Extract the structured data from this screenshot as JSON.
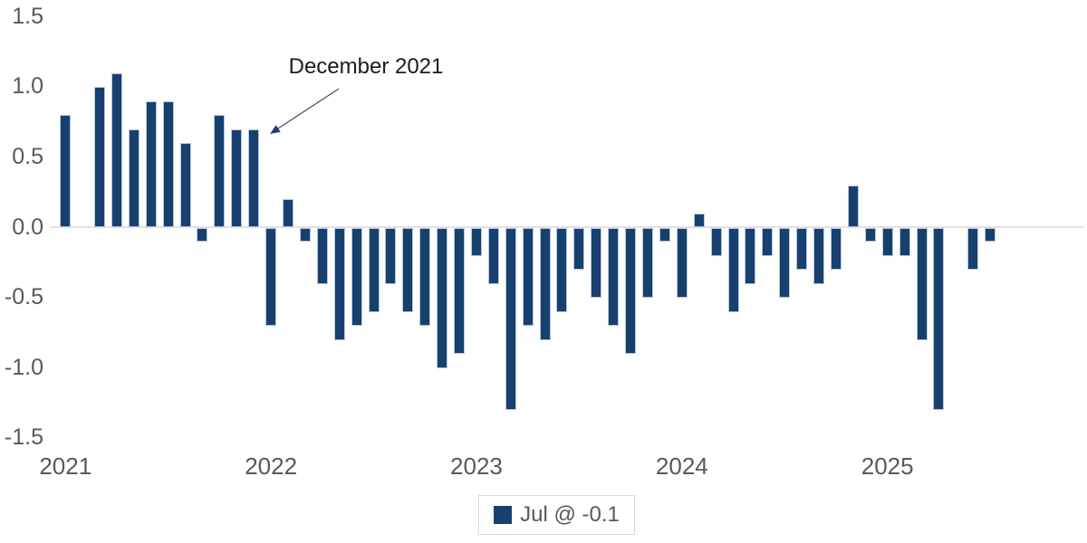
{
  "chart_data": {
    "type": "bar",
    "title": "",
    "xlabel": "",
    "ylabel": "",
    "ylim": [
      -1.5,
      1.5
    ],
    "grid": "zero-line-only",
    "legend_position": "bottom-center",
    "categories": [
      "2021-01",
      "2021-02",
      "2021-03",
      "2021-04",
      "2021-05",
      "2021-06",
      "2021-07",
      "2021-08",
      "2021-09",
      "2021-10",
      "2021-11",
      "2021-12",
      "2022-01",
      "2022-02",
      "2022-03",
      "2022-04",
      "2022-05",
      "2022-06",
      "2022-07",
      "2022-08",
      "2022-09",
      "2022-10",
      "2022-11",
      "2022-12",
      "2023-01",
      "2023-02",
      "2023-03",
      "2023-04",
      "2023-05",
      "2023-06",
      "2023-07",
      "2023-08",
      "2023-09",
      "2023-10",
      "2023-11",
      "2023-12",
      "2024-01",
      "2024-02",
      "2024-03",
      "2024-04",
      "2024-05",
      "2024-06",
      "2024-07",
      "2024-08",
      "2024-09",
      "2024-10",
      "2024-11",
      "2024-12",
      "2025-01",
      "2025-02",
      "2025-03",
      "2025-04",
      "2025-05",
      "2025-06",
      "2025-07"
    ],
    "values": [
      0.8,
      0.0,
      1.0,
      1.1,
      0.7,
      0.9,
      0.9,
      0.6,
      -0.1,
      0.8,
      0.7,
      0.7,
      -0.7,
      0.2,
      -0.1,
      -0.4,
      -0.8,
      -0.7,
      -0.6,
      -0.4,
      -0.6,
      -0.7,
      -1.0,
      -0.9,
      -0.2,
      -0.4,
      -1.3,
      -0.7,
      -0.8,
      -0.6,
      -0.3,
      -0.5,
      -0.7,
      -0.9,
      -0.5,
      -0.1,
      -0.5,
      0.1,
      -0.2,
      -0.6,
      -0.4,
      -0.2,
      -0.5,
      -0.3,
      -0.4,
      -0.3,
      0.3,
      -0.1,
      -0.2,
      -0.2,
      -0.8,
      -1.3,
      0.0,
      -0.3,
      -0.1
    ],
    "y_tick_labels": [
      "1.5",
      "1.0",
      "0.5",
      "0.0",
      "-0.5",
      "-1.0",
      "-1.5"
    ],
    "y_tick_values": [
      1.5,
      1.0,
      0.5,
      0.0,
      -0.5,
      -1.0,
      -1.5
    ],
    "x_ticks": [
      {
        "label": "2021",
        "month_index": 0
      },
      {
        "label": "2022",
        "month_index": 12
      },
      {
        "label": "2023",
        "month_index": 24
      },
      {
        "label": "2024",
        "month_index": 36
      },
      {
        "label": "2025",
        "month_index": 48
      }
    ],
    "annotation": {
      "text": "December 2021",
      "points_to": "2021-12",
      "value": 0.7
    }
  },
  "annotation": {
    "text": "December 2021"
  },
  "legend": {
    "label": "Jul @ -0.1"
  },
  "colors": {
    "bar": "#17406F",
    "bar_edge": "#b7c6da",
    "zero_line": "#e2e2e2",
    "axis_text": "#595959",
    "annotation_text": "#1b1b1b",
    "legend_border": "#d9d9d9",
    "background": "#ffffff"
  }
}
